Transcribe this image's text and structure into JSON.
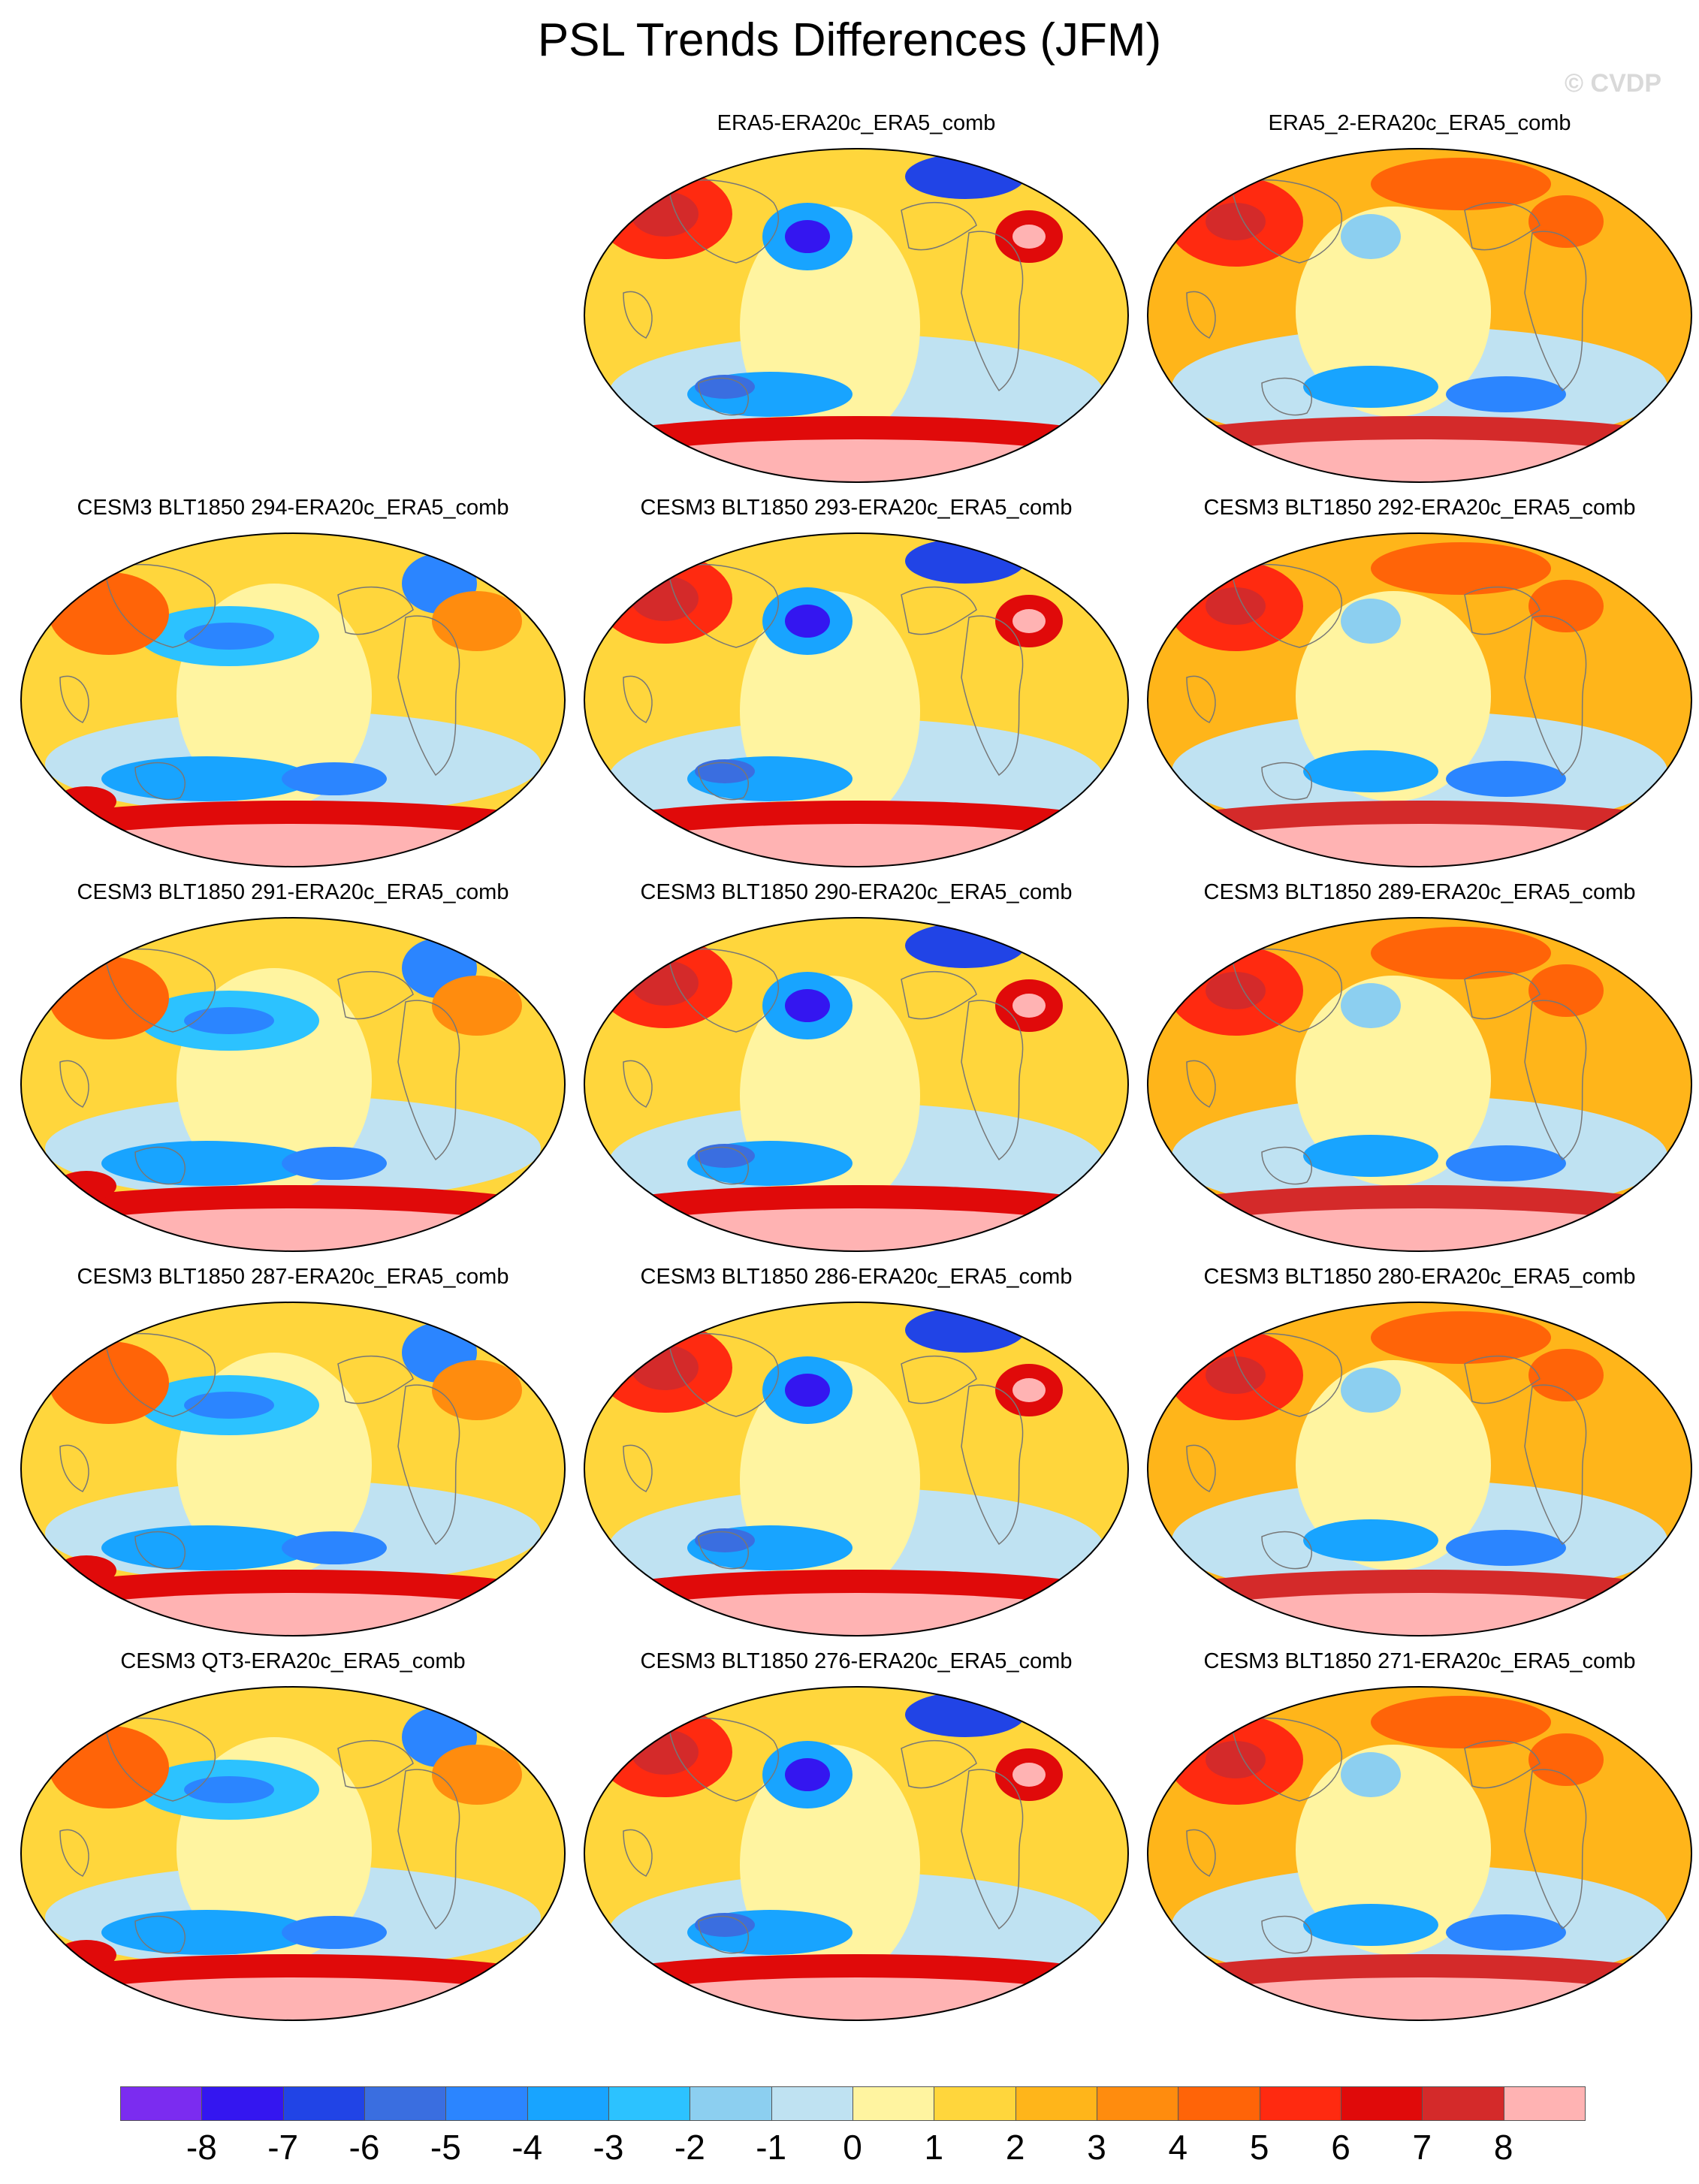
{
  "title": "PSL Trends Differences (JFM)",
  "watermark": "© CVDP",
  "panels": [
    {
      "title": "ERA5-ERA20c_ERA5_comb",
      "pattern": 0
    },
    {
      "title": "ERA5_2-ERA20c_ERA5_comb",
      "pattern": 1
    },
    {
      "title": "CESM3 BLT1850 294-ERA20c_ERA5_comb",
      "pattern": 2
    },
    {
      "title": "CESM3 BLT1850 293-ERA20c_ERA5_comb",
      "pattern": 0
    },
    {
      "title": "CESM3 BLT1850 292-ERA20c_ERA5_comb",
      "pattern": 1
    },
    {
      "title": "CESM3 BLT1850 291-ERA20c_ERA5_comb",
      "pattern": 2
    },
    {
      "title": "CESM3 BLT1850 290-ERA20c_ERA5_comb",
      "pattern": 0
    },
    {
      "title": "CESM3 BLT1850 289-ERA20c_ERA5_comb",
      "pattern": 1
    },
    {
      "title": "CESM3 BLT1850 287-ERA20c_ERA5_comb",
      "pattern": 2
    },
    {
      "title": "CESM3 BLT1850 286-ERA20c_ERA5_comb",
      "pattern": 0
    },
    {
      "title": "CESM3 BLT1850 280-ERA20c_ERA5_comb",
      "pattern": 1
    },
    {
      "title": "CESM3 QT3-ERA20c_ERA5_comb",
      "pattern": 2
    },
    {
      "title": "CESM3 BLT1850 276-ERA20c_ERA5_comb",
      "pattern": 0
    },
    {
      "title": "CESM3 BLT1850 271-ERA20c_ERA5_comb",
      "pattern": 1
    }
  ],
  "colorbar": {
    "colors": [
      "#7b2cf0",
      "#3416f0",
      "#2144e6",
      "#3a6ee0",
      "#2b85ff",
      "#18a4ff",
      "#2cc2ff",
      "#8ccff0",
      "#bfe2f2",
      "#fff4a0",
      "#ffd63c",
      "#ffb51a",
      "#ff8c0e",
      "#ff6408",
      "#ff2a10",
      "#e00a0a",
      "#d42a2a",
      "#ffb3b3"
    ],
    "labels": [
      "-8",
      "-7",
      "-6",
      "-5",
      "-4",
      "-3",
      "-2",
      "-1",
      "0",
      "1",
      "2",
      "3",
      "4",
      "5",
      "6",
      "7",
      "8"
    ]
  }
}
